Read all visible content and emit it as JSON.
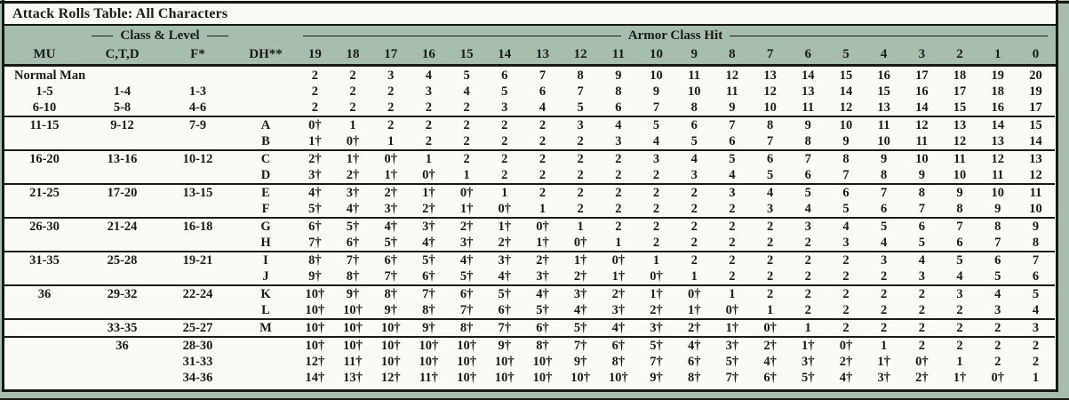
{
  "title": "Attack Rolls Table: All Characters",
  "table": {
    "class_level_label": "Class & Level",
    "armor_class_label": "Armor Class Hit",
    "class_columns": [
      "MU",
      "C,T,D",
      "F*",
      "DH**"
    ],
    "ac_columns": [
      "19",
      "18",
      "17",
      "16",
      "15",
      "14",
      "13",
      "12",
      "11",
      "10",
      "9",
      "8",
      "7",
      "6",
      "5",
      "4",
      "3",
      "2",
      "1",
      "0"
    ],
    "groups": [
      {
        "rows": [
          {
            "mu": "Normal Man",
            "ctd": "",
            "f": "",
            "dh": "",
            "values": [
              "2",
              "2",
              "3",
              "4",
              "5",
              "6",
              "7",
              "8",
              "9",
              "10",
              "11",
              "12",
              "13",
              "14",
              "15",
              "16",
              "17",
              "18",
              "19",
              "20"
            ]
          },
          {
            "mu": "1-5",
            "ctd": "1-4",
            "f": "1-3",
            "dh": "",
            "values": [
              "2",
              "2",
              "2",
              "3",
              "4",
              "5",
              "6",
              "7",
              "8",
              "9",
              "10",
              "11",
              "12",
              "13",
              "14",
              "15",
              "16",
              "17",
              "18",
              "19"
            ]
          },
          {
            "mu": "6-10",
            "ctd": "5-8",
            "f": "4-6",
            "dh": "",
            "values": [
              "2",
              "2",
              "2",
              "2",
              "2",
              "3",
              "4",
              "5",
              "6",
              "7",
              "8",
              "9",
              "10",
              "11",
              "12",
              "13",
              "14",
              "15",
              "16",
              "17"
            ]
          }
        ]
      },
      {
        "rows": [
          {
            "mu": "11-15",
            "ctd": "9-12",
            "f": "7-9",
            "dh": "A",
            "values": [
              "0†",
              "1",
              "2",
              "2",
              "2",
              "2",
              "2",
              "3",
              "4",
              "5",
              "6",
              "7",
              "8",
              "9",
              "10",
              "11",
              "12",
              "13",
              "14",
              "15"
            ]
          },
          {
            "mu": "",
            "ctd": "",
            "f": "",
            "dh": "B",
            "values": [
              "1†",
              "0†",
              "1",
              "2",
              "2",
              "2",
              "2",
              "2",
              "3",
              "4",
              "5",
              "6",
              "7",
              "8",
              "9",
              "10",
              "11",
              "12",
              "13",
              "14"
            ]
          }
        ]
      },
      {
        "rows": [
          {
            "mu": "16-20",
            "ctd": "13-16",
            "f": "10-12",
            "dh": "C",
            "values": [
              "2†",
              "1†",
              "0†",
              "1",
              "2",
              "2",
              "2",
              "2",
              "2",
              "3",
              "4",
              "5",
              "6",
              "7",
              "8",
              "9",
              "10",
              "11",
              "12",
              "13"
            ]
          },
          {
            "mu": "",
            "ctd": "",
            "f": "",
            "dh": "D",
            "values": [
              "3†",
              "2†",
              "1†",
              "0†",
              "1",
              "2",
              "2",
              "2",
              "2",
              "2",
              "3",
              "4",
              "5",
              "6",
              "7",
              "8",
              "9",
              "10",
              "11",
              "12"
            ]
          }
        ]
      },
      {
        "rows": [
          {
            "mu": "21-25",
            "ctd": "17-20",
            "f": "13-15",
            "dh": "E",
            "values": [
              "4†",
              "3†",
              "2†",
              "1†",
              "0†",
              "1",
              "2",
              "2",
              "2",
              "2",
              "2",
              "3",
              "4",
              "5",
              "6",
              "7",
              "8",
              "9",
              "10",
              "11"
            ]
          },
          {
            "mu": "",
            "ctd": "",
            "f": "",
            "dh": "F",
            "values": [
              "5†",
              "4†",
              "3†",
              "2†",
              "1†",
              "0†",
              "1",
              "2",
              "2",
              "2",
              "2",
              "2",
              "3",
              "4",
              "5",
              "6",
              "7",
              "8",
              "9",
              "10"
            ]
          }
        ]
      },
      {
        "rows": [
          {
            "mu": "26-30",
            "ctd": "21-24",
            "f": "16-18",
            "dh": "G",
            "values": [
              "6†",
              "5†",
              "4†",
              "3†",
              "2†",
              "1†",
              "0†",
              "1",
              "2",
              "2",
              "2",
              "2",
              "2",
              "3",
              "4",
              "5",
              "6",
              "7",
              "8",
              "9"
            ]
          },
          {
            "mu": "",
            "ctd": "",
            "f": "",
            "dh": "H",
            "values": [
              "7†",
              "6†",
              "5†",
              "4†",
              "3†",
              "2†",
              "1†",
              "0†",
              "1",
              "2",
              "2",
              "2",
              "2",
              "2",
              "3",
              "4",
              "5",
              "6",
              "7",
              "8"
            ]
          }
        ]
      },
      {
        "rows": [
          {
            "mu": "31-35",
            "ctd": "25-28",
            "f": "19-21",
            "dh": "I",
            "values": [
              "8†",
              "7†",
              "6†",
              "5†",
              "4†",
              "3†",
              "2†",
              "1†",
              "0†",
              "1",
              "2",
              "2",
              "2",
              "2",
              "2",
              "3",
              "4",
              "5",
              "6",
              "7"
            ]
          },
          {
            "mu": "",
            "ctd": "",
            "f": "",
            "dh": "J",
            "values": [
              "9†",
              "8†",
              "7†",
              "6†",
              "5†",
              "4†",
              "3†",
              "2†",
              "1†",
              "0†",
              "1",
              "2",
              "2",
              "2",
              "2",
              "2",
              "3",
              "4",
              "5",
              "6"
            ]
          }
        ]
      },
      {
        "rows": [
          {
            "mu": "36",
            "ctd": "29-32",
            "f": "22-24",
            "dh": "K",
            "values": [
              "10†",
              "9†",
              "8†",
              "7†",
              "6†",
              "5†",
              "4†",
              "3†",
              "2†",
              "1†",
              "0†",
              "1",
              "2",
              "2",
              "2",
              "2",
              "2",
              "3",
              "4",
              "5"
            ]
          },
          {
            "mu": "",
            "ctd": "",
            "f": "",
            "dh": "L",
            "values": [
              "10†",
              "10†",
              "9†",
              "8†",
              "7†",
              "6†",
              "5†",
              "4†",
              "3†",
              "2†",
              "1†",
              "0†",
              "1",
              "2",
              "2",
              "2",
              "2",
              "2",
              "3",
              "4"
            ]
          }
        ]
      },
      {
        "rows": [
          {
            "mu": "",
            "ctd": "33-35",
            "f": "25-27",
            "dh": "M",
            "values": [
              "10†",
              "10†",
              "10†",
              "9†",
              "8†",
              "7†",
              "6†",
              "5†",
              "4†",
              "3†",
              "2†",
              "1†",
              "0†",
              "1",
              "2",
              "2",
              "2",
              "2",
              "2",
              "3"
            ]
          }
        ]
      },
      {
        "rows": [
          {
            "mu": "",
            "ctd": "36",
            "f": "28-30",
            "dh": "",
            "values": [
              "10†",
              "10†",
              "10†",
              "10†",
              "10†",
              "9†",
              "8†",
              "7†",
              "6†",
              "5†",
              "4†",
              "3†",
              "2†",
              "1†",
              "0†",
              "1",
              "2",
              "2",
              "2",
              "2"
            ]
          },
          {
            "mu": "",
            "ctd": "",
            "f": "31-33",
            "dh": "",
            "values": [
              "12†",
              "11†",
              "10†",
              "10†",
              "10†",
              "10†",
              "10†",
              "9†",
              "8†",
              "7†",
              "6†",
              "5†",
              "4†",
              "3†",
              "2†",
              "1†",
              "0†",
              "1",
              "2",
              "2"
            ]
          },
          {
            "mu": "",
            "ctd": "",
            "f": "34-36",
            "dh": "",
            "values": [
              "14†",
              "13†",
              "12†",
              "11†",
              "10†",
              "10†",
              "10†",
              "10†",
              "10†",
              "9†",
              "8†",
              "7†",
              "6†",
              "5†",
              "4†",
              "3†",
              "2†",
              "1†",
              "0†",
              "1"
            ]
          }
        ]
      }
    ]
  }
}
